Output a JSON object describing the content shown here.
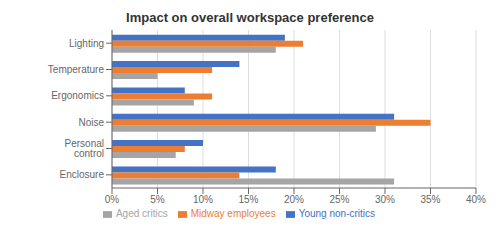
{
  "chart_data": {
    "type": "bar",
    "orientation": "horizontal",
    "title": "Impact on overall workspace preference",
    "categories": [
      "Lighting",
      "Temperature",
      "Ergonomics",
      "Noise",
      "Personal control",
      "Enclosure"
    ],
    "series": [
      {
        "name": "Young non-critics",
        "color": "#4472C4",
        "values": [
          19,
          14,
          8,
          31,
          10,
          18
        ]
      },
      {
        "name": "Midway employees",
        "color": "#ED7D31",
        "values": [
          21,
          11,
          11,
          35,
          8,
          14
        ]
      },
      {
        "name": "Aged critics",
        "color": "#A5A5A5",
        "values": [
          18,
          5,
          9,
          29,
          7,
          31
        ]
      }
    ],
    "xlim": [
      0,
      40
    ],
    "xticks": [
      {
        "value": 0,
        "label": "0%"
      },
      {
        "value": 5,
        "label": "5%"
      },
      {
        "value": 10,
        "label": "10%"
      },
      {
        "value": 15,
        "label": "15%"
      },
      {
        "value": 20,
        "label": "20%"
      },
      {
        "value": 25,
        "label": "25%"
      },
      {
        "value": 30,
        "label": "30%"
      },
      {
        "value": 35,
        "label": "35%"
      },
      {
        "value": 40,
        "label": "40%"
      }
    ],
    "grid": true,
    "legend": "bottom"
  }
}
